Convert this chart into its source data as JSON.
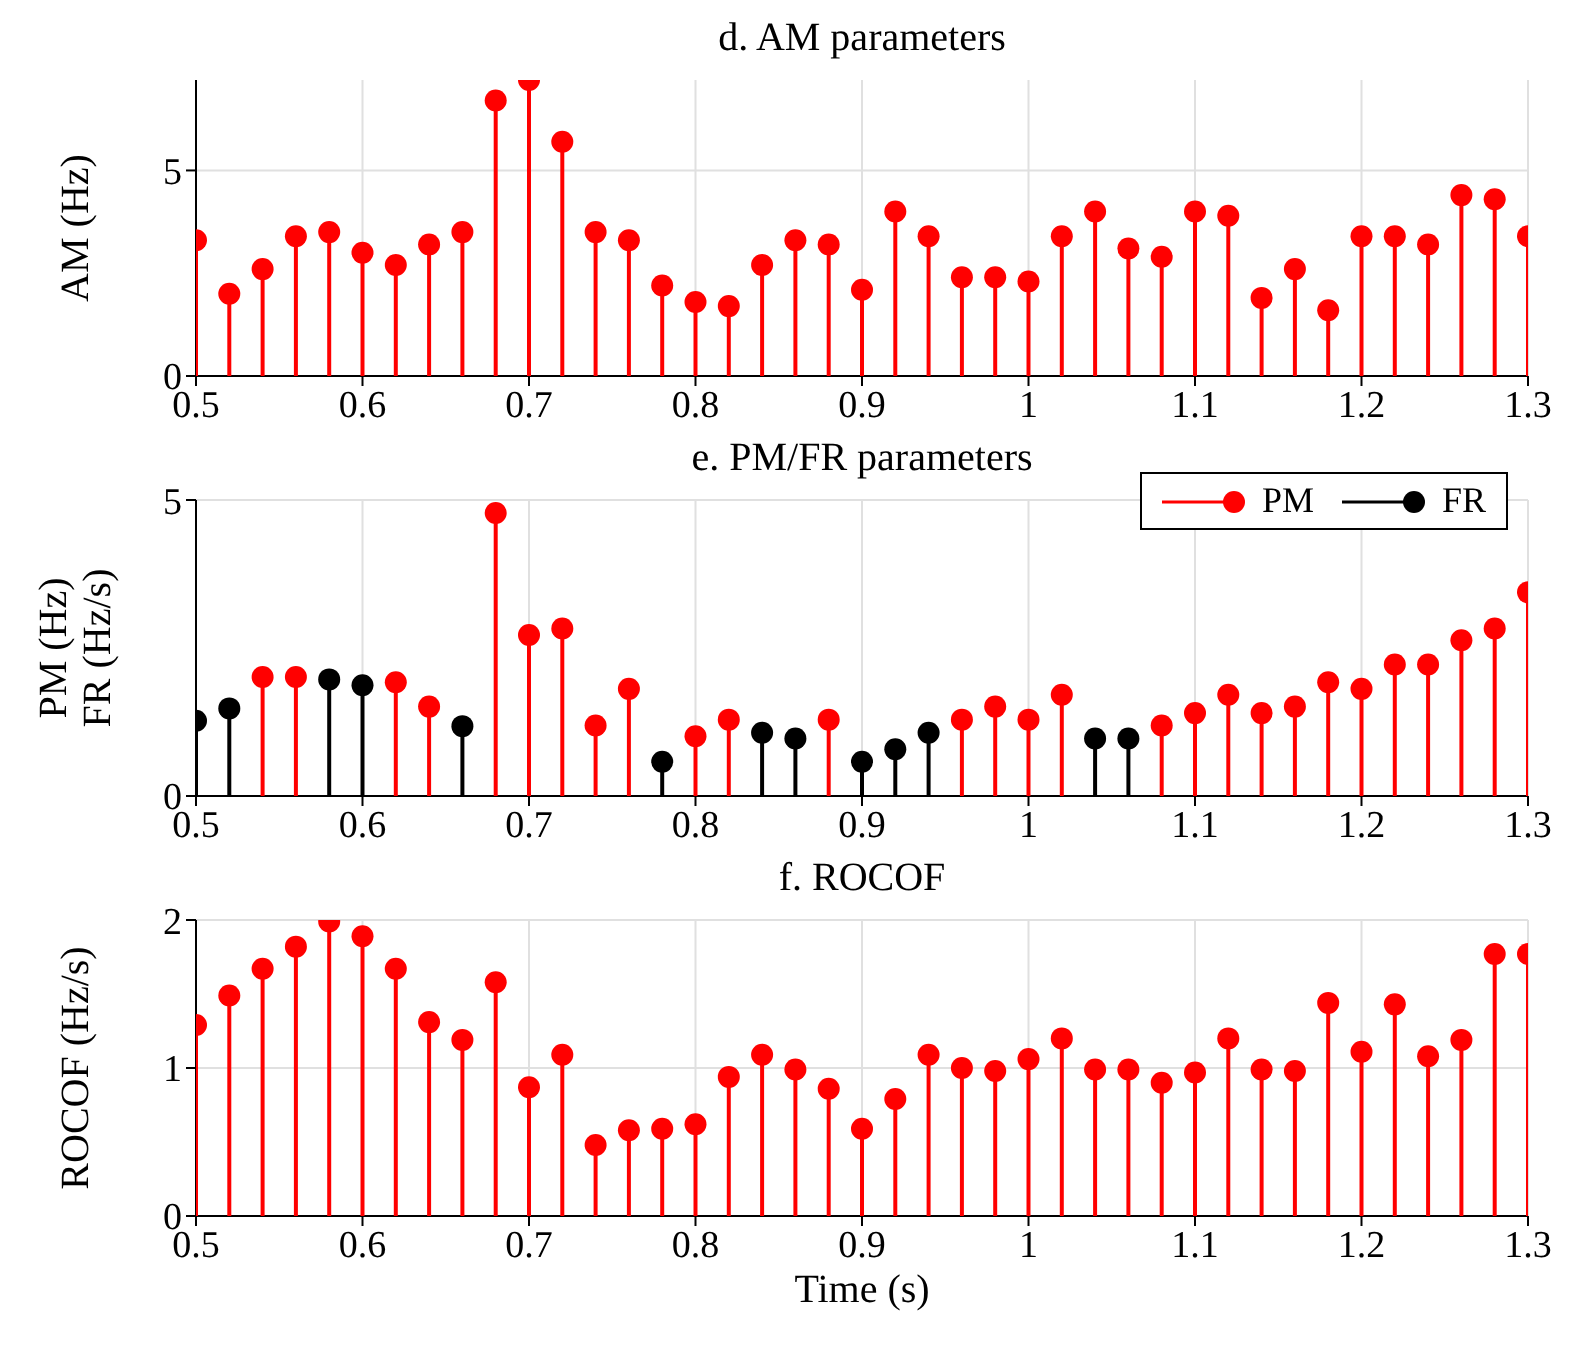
{
  "chart_data": [
    {
      "type": "lollipop",
      "title": "d. AM parameters",
      "ylabel": "AM (Hz)",
      "x": [
        0.5,
        0.52,
        0.54,
        0.56,
        0.58,
        0.6,
        0.62,
        0.64,
        0.66,
        0.68,
        0.7,
        0.72,
        0.74,
        0.76,
        0.78,
        0.8,
        0.82,
        0.84,
        0.86,
        0.88,
        0.9,
        0.92,
        0.94,
        0.96,
        0.98,
        1,
        1.02,
        1.04,
        1.06,
        1.08,
        1.1,
        1.12,
        1.14,
        1.16,
        1.18,
        1.2,
        1.22,
        1.24,
        1.26,
        1.28,
        1.3
      ],
      "series": [
        {
          "color": "#ff0000",
          "values": [
            3.3,
            2.0,
            2.6,
            3.4,
            3.5,
            3.0,
            2.7,
            3.2,
            3.5,
            6.7,
            7.2,
            5.7,
            3.5,
            3.3,
            2.2,
            1.8,
            1.7,
            2.7,
            3.3,
            3.2,
            2.1,
            4.0,
            3.4,
            2.4,
            2.4,
            2.3,
            3.4,
            4.0,
            3.1,
            2.9,
            4.0,
            3.9,
            1.9,
            2.6,
            1.6,
            3.4,
            3.4,
            3.2,
            4.4,
            4.3,
            3.4
          ]
        }
      ],
      "xlim": [
        0.5,
        1.3
      ],
      "xticks": [
        0.5,
        0.6,
        0.7,
        0.8,
        0.9,
        1,
        1.1,
        1.2,
        1.3
      ],
      "ylim": [
        0,
        7.2
      ],
      "yticks": [
        0,
        5
      ],
      "grid": true,
      "marker": "circle"
    },
    {
      "type": "lollipop",
      "title": "e. PM/FR parameters",
      "ylabel": "PM (Hz)\nFR (Hz/s)",
      "x": [
        0.5,
        0.52,
        0.54,
        0.56,
        0.58,
        0.6,
        0.62,
        0.64,
        0.66,
        0.68,
        0.7,
        0.72,
        0.74,
        0.76,
        0.78,
        0.8,
        0.82,
        0.84,
        0.86,
        0.88,
        0.9,
        0.92,
        0.94,
        0.96,
        0.98,
        1,
        1.02,
        1.04,
        1.06,
        1.08,
        1.1,
        1.12,
        1.14,
        1.16,
        1.18,
        1.2,
        1.22,
        1.24,
        1.26,
        1.28,
        1.3
      ],
      "series": [
        {
          "name": "PM",
          "color": "#ff0000",
          "values": [
            null,
            null,
            2.01,
            2.01,
            null,
            null,
            1.92,
            1.51,
            null,
            4.78,
            2.72,
            2.83,
            1.19,
            1.81,
            null,
            1.01,
            1.29,
            null,
            null,
            1.29,
            null,
            null,
            null,
            1.29,
            1.51,
            1.29,
            1.71,
            null,
            null,
            1.19,
            1.4,
            1.71,
            1.4,
            1.51,
            1.92,
            1.81,
            2.22,
            2.22,
            2.63,
            2.83,
            3.44
          ]
        },
        {
          "name": "FR",
          "color": "#000000",
          "values": [
            1.27,
            1.48,
            null,
            null,
            1.97,
            1.87,
            null,
            null,
            1.18,
            null,
            null,
            null,
            null,
            null,
            0.58,
            null,
            null,
            1.07,
            0.97,
            null,
            0.58,
            0.79,
            1.07,
            null,
            null,
            null,
            null,
            0.97,
            0.97,
            null,
            null,
            null,
            null,
            null,
            null,
            null,
            null,
            null,
            null,
            null,
            null
          ]
        }
      ],
      "xlim": [
        0.5,
        1.3
      ],
      "xticks": [
        0.5,
        0.6,
        0.7,
        0.8,
        0.9,
        1,
        1.1,
        1.2,
        1.3
      ],
      "ylim": [
        0,
        5
      ],
      "yticks": [
        0,
        5
      ],
      "grid": true,
      "marker": "circle",
      "legend": "top right"
    },
    {
      "type": "lollipop",
      "title": "f. ROCOF",
      "ylabel": "ROCOF (Hz/s)",
      "xlabel": "Time (s)",
      "x": [
        0.5,
        0.52,
        0.54,
        0.56,
        0.58,
        0.6,
        0.62,
        0.64,
        0.66,
        0.68,
        0.7,
        0.72,
        0.74,
        0.76,
        0.78,
        0.8,
        0.82,
        0.84,
        0.86,
        0.88,
        0.9,
        0.92,
        0.94,
        0.96,
        0.98,
        1,
        1.02,
        1.04,
        1.06,
        1.08,
        1.1,
        1.12,
        1.14,
        1.16,
        1.18,
        1.2,
        1.22,
        1.24,
        1.26,
        1.28,
        1.3
      ],
      "series": [
        {
          "color": "#ff0000",
          "values": [
            1.29,
            1.49,
            1.67,
            1.82,
            1.99,
            1.89,
            1.67,
            1.31,
            1.19,
            1.58,
            0.87,
            1.09,
            0.48,
            0.58,
            0.59,
            0.62,
            0.94,
            1.09,
            0.99,
            0.86,
            0.59,
            0.79,
            1.09,
            1.0,
            0.98,
            1.06,
            1.2,
            0.99,
            0.99,
            0.9,
            0.97,
            1.2,
            0.99,
            0.98,
            1.44,
            1.11,
            1.43,
            1.08,
            1.19,
            1.77,
            1.77
          ]
        }
      ],
      "xlim": [
        0.5,
        1.3
      ],
      "xticks": [
        0.5,
        0.6,
        0.7,
        0.8,
        0.9,
        1,
        1.1,
        1.2,
        1.3
      ],
      "ylim": [
        0,
        2
      ],
      "yticks": [
        0,
        1,
        2
      ],
      "grid": true,
      "marker": "circle"
    }
  ]
}
